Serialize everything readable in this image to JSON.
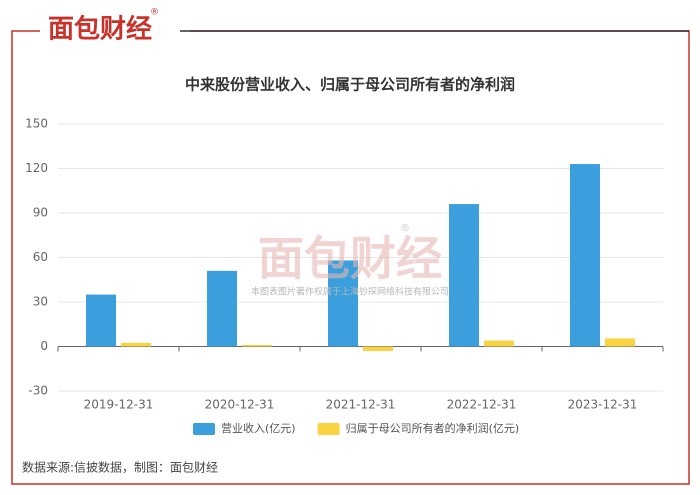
{
  "logo": {
    "text": "面包财经",
    "mark": "®"
  },
  "watermark": {
    "text": "面包财经",
    "mark": "®",
    "note": "本图表图片著作权属于上海钞探网络科技有限公司"
  },
  "source": "数据来源:信披数据，制图：面包财经",
  "chart_data": {
    "type": "bar",
    "title": "中来股份营业收入、归属于母公司所有者的净利润",
    "categories": [
      "2019-12-31",
      "2020-12-31",
      "2021-12-31",
      "2022-12-31",
      "2023-12-31"
    ],
    "series": [
      {
        "name": "营业收入(亿元)",
        "color": "#3a9fdc",
        "values": [
          35,
          51,
          58,
          96,
          123
        ]
      },
      {
        "name": "归属于母公司所有者的净利润(亿元)",
        "color": "#f9d342",
        "values": [
          2.5,
          1,
          -3,
          4,
          5.5
        ]
      }
    ],
    "ylim": [
      -30,
      150
    ],
    "yticks": [
      -30,
      0,
      30,
      60,
      90,
      120,
      150
    ],
    "grid": true,
    "legend": "bottom"
  }
}
